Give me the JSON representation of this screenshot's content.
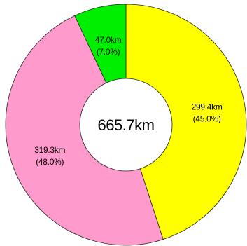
{
  "chart_data": {
    "type": "pie",
    "donut": true,
    "center_label": "665.7km",
    "slices": [
      {
        "value_label": "299.4km",
        "percent_label": "(45.0%)",
        "value": 299.4,
        "percent": 45.0,
        "color": "#ffff00"
      },
      {
        "value_label": "319.3km",
        "percent_label": "(48.0%)",
        "value": 319.3,
        "percent": 48.0,
        "color": "#ff9acc"
      },
      {
        "value_label": "47.0km",
        "percent_label": "(7.0%)",
        "value": 47.0,
        "percent": 7.0,
        "color": "#00ee00"
      }
    ],
    "start_angle": "12 o'clock",
    "direction": "clockwise"
  }
}
